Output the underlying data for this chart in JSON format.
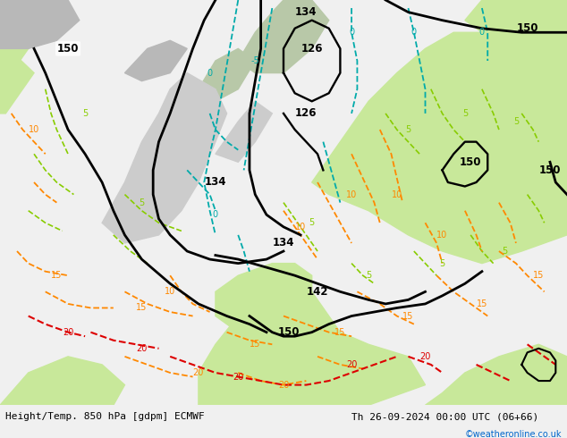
{
  "bottom_left_text": "Height/Temp. 850 hPa [gdpm] ECMWF",
  "bottom_right_text": "Th 26-09-2024 00:00 UTC (06+66)",
  "bottom_credit": "©weatheronline.co.uk",
  "figsize": [
    6.34,
    4.9
  ],
  "dpi": 100,
  "bottom_text_color": "#000000",
  "credit_color": "#0066cc",
  "bottom_bar_color": "#f0f0f0",
  "font_size_bottom": 8,
  "font_size_credit": 7,
  "sea_color": "#d8d8d8",
  "land_warm_color": "#c8e89a",
  "land_cold_color": "#b8b8b8",
  "land_mid_color": "#d0e8a0"
}
